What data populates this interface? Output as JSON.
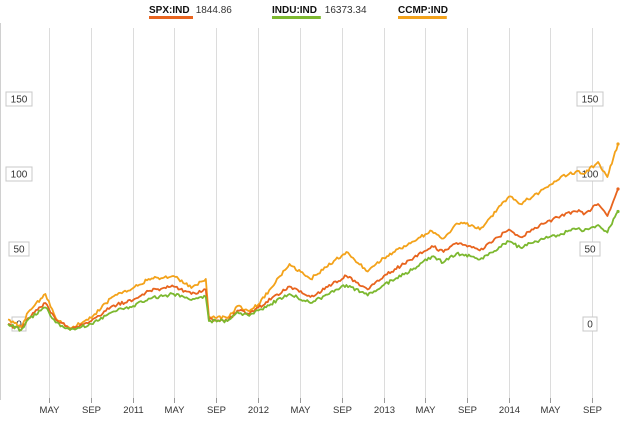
{
  "chart_data": {
    "type": "line",
    "title": "",
    "xlabel": "",
    "ylabel": "",
    "ylim": [
      -45,
      185
    ],
    "yticks": [
      0,
      50,
      100,
      150
    ],
    "xlim": [
      "2010-01-01",
      "2014-11-15"
    ],
    "xticks": [
      {
        "label": "MAY",
        "date": "2010-05-01"
      },
      {
        "label": "SEP",
        "date": "2010-09-01"
      },
      {
        "label": "2011",
        "date": "2011-01-01"
      },
      {
        "label": "MAY",
        "date": "2011-05-01"
      },
      {
        "label": "SEP",
        "date": "2011-09-01"
      },
      {
        "label": "2012",
        "date": "2012-01-01"
      },
      {
        "label": "MAY",
        "date": "2012-05-01"
      },
      {
        "label": "SEP",
        "date": "2012-09-01"
      },
      {
        "label": "2013",
        "date": "2013-01-01"
      },
      {
        "label": "MAY",
        "date": "2013-05-01"
      },
      {
        "label": "SEP",
        "date": "2013-09-01"
      },
      {
        "label": "2014",
        "date": "2014-01-01"
      },
      {
        "label": "MAY",
        "date": "2014-05-01"
      },
      {
        "label": "SEP",
        "date": "2014-09-01"
      }
    ],
    "grid": "vertical",
    "legend_position": "top",
    "series": [
      {
        "name": "SPX:IND",
        "last_value": "1844.86",
        "color": "#e8641e",
        "x": [
          "2010-01-01",
          "2010-02-08",
          "2010-03-01",
          "2010-04-20",
          "2010-05-20",
          "2010-07-01",
          "2010-09-01",
          "2010-11-01",
          "2011-01-01",
          "2011-02-15",
          "2011-04-29",
          "2011-06-20",
          "2011-08-01",
          "2011-08-10",
          "2011-10-03",
          "2011-11-01",
          "2011-12-01",
          "2012-01-01",
          "2012-04-01",
          "2012-06-01",
          "2012-09-14",
          "2012-11-15",
          "2013-01-01",
          "2013-03-01",
          "2013-05-21",
          "2013-06-24",
          "2013-08-01",
          "2013-09-15",
          "2013-10-08",
          "2014-01-01",
          "2014-02-03",
          "2014-04-01",
          "2014-06-01",
          "2014-07-24",
          "2014-08-07",
          "2014-09-18",
          "2014-10-15",
          "2014-11-15"
        ],
        "values": [
          0,
          -4,
          4,
          14,
          3,
          -3,
          2,
          12,
          16,
          22,
          25,
          20,
          23,
          3,
          2,
          9,
          7,
          11,
          25,
          18,
          32,
          23,
          32,
          40,
          52,
          48,
          54,
          51,
          49,
          63,
          58,
          66,
          72,
          76,
          73,
          80,
          72,
          90
        ]
      },
      {
        "name": "INDU:IND",
        "last_value": "16373.34",
        "color": "#7cb82f",
        "x": [
          "2010-01-01",
          "2010-02-08",
          "2010-03-01",
          "2010-04-20",
          "2010-05-20",
          "2010-07-01",
          "2010-09-01",
          "2010-11-01",
          "2011-01-01",
          "2011-02-15",
          "2011-04-29",
          "2011-06-20",
          "2011-08-01",
          "2011-08-10",
          "2011-10-03",
          "2011-11-01",
          "2011-12-01",
          "2012-01-01",
          "2012-04-01",
          "2012-06-01",
          "2012-09-14",
          "2012-11-15",
          "2013-01-01",
          "2013-03-01",
          "2013-05-21",
          "2013-06-24",
          "2013-08-01",
          "2013-09-15",
          "2013-10-08",
          "2014-01-01",
          "2014-02-03",
          "2014-04-01",
          "2014-06-01",
          "2014-07-24",
          "2014-08-07",
          "2014-09-18",
          "2014-10-15",
          "2014-11-15"
        ],
        "values": [
          0,
          -4,
          3,
          11,
          1,
          -4,
          0,
          8,
          12,
          17,
          20,
          16,
          18,
          2,
          2,
          8,
          6,
          9,
          20,
          14,
          26,
          19,
          26,
          33,
          45,
          41,
          47,
          45,
          43,
          55,
          51,
          56,
          60,
          64,
          62,
          66,
          61,
          75
        ]
      },
      {
        "name": "CCMP:IND",
        "color": "#f3a21a",
        "x": [
          "2010-01-01",
          "2010-02-08",
          "2010-03-01",
          "2010-04-20",
          "2010-05-20",
          "2010-07-01",
          "2010-09-01",
          "2010-11-01",
          "2011-01-01",
          "2011-02-15",
          "2011-04-29",
          "2011-06-20",
          "2011-08-01",
          "2011-08-10",
          "2011-10-03",
          "2011-11-01",
          "2011-12-01",
          "2012-01-01",
          "2012-04-01",
          "2012-06-01",
          "2012-09-14",
          "2012-11-15",
          "2013-01-01",
          "2013-03-01",
          "2013-05-21",
          "2013-06-24",
          "2013-08-01",
          "2013-09-15",
          "2013-10-08",
          "2014-01-01",
          "2014-02-03",
          "2014-04-01",
          "2014-06-01",
          "2014-07-24",
          "2014-08-07",
          "2014-09-18",
          "2014-10-15",
          "2014-11-15"
        ],
        "values": [
          3,
          -2,
          8,
          20,
          4,
          -3,
          4,
          18,
          24,
          30,
          32,
          24,
          30,
          5,
          4,
          12,
          9,
          13,
          40,
          30,
          48,
          35,
          44,
          52,
          62,
          57,
          67,
          66,
          63,
          85,
          80,
          88,
          98,
          102,
          100,
          108,
          98,
          120
        ]
      }
    ]
  }
}
